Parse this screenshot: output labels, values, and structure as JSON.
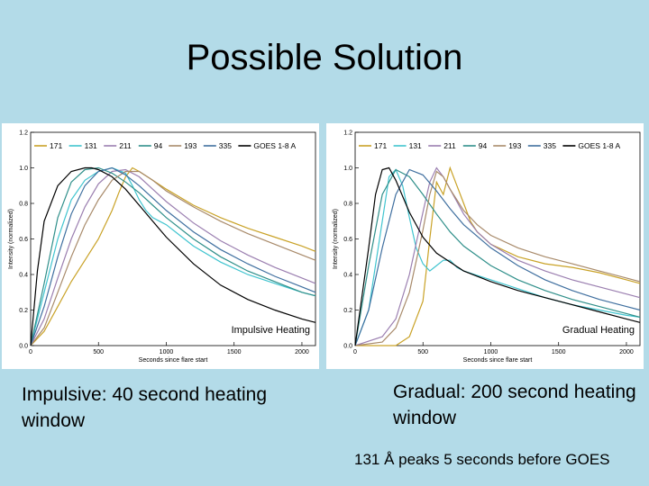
{
  "slide": {
    "title": "Possible Solution",
    "caption_left": "Impulsive: 40 second heating window",
    "caption_right": "Gradual: 200 second heating window",
    "note": "131 Å peaks 5 seconds before GOES"
  },
  "colors": {
    "background": "#b3dbe8",
    "171": "#c9a227",
    "131": "#40c4cf",
    "211": "#9b7fb0",
    "94": "#2f8f8a",
    "193": "#a88a6a",
    "335": "#3f6f9f",
    "GOES 1-8 A": "#000000"
  },
  "chart_data": [
    {
      "type": "line",
      "annotation": "Impulsive Heating",
      "xlabel": "Seconds since flare start",
      "ylabel": "Intensity (normalized)",
      "xlim": [
        0,
        2100
      ],
      "ylim": [
        0,
        1.2
      ],
      "x_ticks": [
        0,
        500,
        1000,
        1500,
        2000
      ],
      "y_ticks": [
        0.0,
        0.2,
        0.4,
        0.6,
        0.8,
        1.0,
        1.2
      ],
      "series": [
        {
          "name": "171",
          "x": [
            0,
            100,
            200,
            300,
            400,
            500,
            600,
            650,
            700,
            750,
            800,
            900,
            1000,
            1200,
            1400,
            1600,
            1800,
            2000,
            2100
          ],
          "y": [
            0,
            0.08,
            0.22,
            0.36,
            0.48,
            0.6,
            0.76,
            0.86,
            0.95,
            1.0,
            0.98,
            0.93,
            0.88,
            0.79,
            0.72,
            0.66,
            0.61,
            0.56,
            0.53
          ]
        },
        {
          "name": "131",
          "x": [
            0,
            100,
            200,
            300,
            400,
            500,
            600,
            700,
            750,
            800,
            850,
            900,
            950,
            1000,
            1100,
            1200,
            1400,
            1600,
            1800,
            2000,
            2100
          ],
          "y": [
            0,
            0.3,
            0.6,
            0.82,
            0.93,
            0.98,
            1.0,
            0.97,
            0.9,
            0.82,
            0.76,
            0.72,
            0.7,
            0.68,
            0.62,
            0.56,
            0.47,
            0.4,
            0.35,
            0.3,
            0.28
          ]
        },
        {
          "name": "211",
          "x": [
            0,
            100,
            200,
            300,
            400,
            500,
            600,
            700,
            800,
            900,
            1000,
            1200,
            1400,
            1600,
            1800,
            2000,
            2100
          ],
          "y": [
            0,
            0.15,
            0.38,
            0.6,
            0.78,
            0.91,
            0.98,
            0.99,
            0.95,
            0.88,
            0.81,
            0.69,
            0.59,
            0.51,
            0.44,
            0.38,
            0.35
          ]
        },
        {
          "name": "94",
          "x": [
            0,
            100,
            200,
            300,
            400,
            500,
            600,
            700,
            800,
            900,
            1000,
            1200,
            1400,
            1600,
            1800,
            2000,
            2100
          ],
          "y": [
            0,
            0.35,
            0.72,
            0.92,
            0.99,
            1.0,
            0.97,
            0.92,
            0.86,
            0.79,
            0.72,
            0.6,
            0.5,
            0.42,
            0.36,
            0.3,
            0.28
          ]
        },
        {
          "name": "193",
          "x": [
            0,
            100,
            200,
            300,
            400,
            500,
            600,
            700,
            800,
            900,
            1000,
            1200,
            1400,
            1600,
            1800,
            2000,
            2100
          ],
          "y": [
            0,
            0.1,
            0.3,
            0.5,
            0.68,
            0.82,
            0.93,
            0.98,
            0.98,
            0.93,
            0.87,
            0.78,
            0.7,
            0.63,
            0.57,
            0.51,
            0.48
          ]
        },
        {
          "name": "335",
          "x": [
            0,
            100,
            200,
            300,
            400,
            500,
            600,
            700,
            800,
            900,
            1000,
            1200,
            1400,
            1600,
            1800,
            2000,
            2100
          ],
          "y": [
            0,
            0.22,
            0.5,
            0.74,
            0.9,
            0.98,
            1.0,
            0.96,
            0.9,
            0.83,
            0.76,
            0.64,
            0.54,
            0.46,
            0.39,
            0.33,
            0.3
          ]
        },
        {
          "name": "GOES 1-8 A",
          "x": [
            0,
            50,
            100,
            200,
            300,
            400,
            450,
            500,
            600,
            700,
            800,
            900,
            1000,
            1200,
            1400,
            1600,
            1800,
            2000,
            2100
          ],
          "y": [
            0,
            0.42,
            0.7,
            0.9,
            0.98,
            1.0,
            1.0,
            0.99,
            0.95,
            0.88,
            0.79,
            0.7,
            0.61,
            0.46,
            0.34,
            0.26,
            0.2,
            0.15,
            0.13
          ]
        }
      ]
    },
    {
      "type": "line",
      "annotation": "Gradual Heating",
      "xlabel": "Seconds since flare start",
      "ylabel": "Intensity (normalized)",
      "xlim": [
        0,
        2100
      ],
      "ylim": [
        0,
        1.2
      ],
      "x_ticks": [
        0,
        500,
        1000,
        1500,
        2000
      ],
      "y_ticks": [
        0.0,
        0.2,
        0.4,
        0.6,
        0.8,
        1.0,
        1.2
      ],
      "series": [
        {
          "name": "171",
          "x": [
            0,
            300,
            400,
            500,
            550,
            600,
            650,
            700,
            750,
            800,
            850,
            900,
            1000,
            1200,
            1400,
            1600,
            1800,
            2000,
            2100
          ],
          "y": [
            0,
            0.0,
            0.05,
            0.25,
            0.6,
            0.92,
            0.85,
            1.0,
            0.9,
            0.8,
            0.7,
            0.64,
            0.57,
            0.5,
            0.46,
            0.44,
            0.41,
            0.37,
            0.35
          ]
        },
        {
          "name": "131",
          "x": [
            0,
            100,
            200,
            250,
            300,
            350,
            400,
            450,
            500,
            550,
            600,
            650,
            700,
            750,
            800,
            1000,
            1200,
            1400,
            1600,
            1800,
            2000,
            2100
          ],
          "y": [
            0,
            0.2,
            0.7,
            0.95,
            0.99,
            0.9,
            0.72,
            0.55,
            0.46,
            0.42,
            0.45,
            0.48,
            0.48,
            0.44,
            0.42,
            0.37,
            0.32,
            0.27,
            0.23,
            0.2,
            0.17,
            0.16
          ]
        },
        {
          "name": "211",
          "x": [
            0,
            200,
            300,
            400,
            500,
            550,
            600,
            650,
            700,
            800,
            900,
            1000,
            1200,
            1400,
            1600,
            1800,
            2000,
            2100
          ],
          "y": [
            0,
            0.05,
            0.15,
            0.4,
            0.75,
            0.92,
            1.0,
            0.95,
            0.88,
            0.74,
            0.64,
            0.57,
            0.48,
            0.42,
            0.37,
            0.33,
            0.29,
            0.27
          ]
        },
        {
          "name": "94",
          "x": [
            0,
            100,
            200,
            300,
            400,
            500,
            600,
            700,
            800,
            1000,
            1200,
            1400,
            1600,
            1800,
            2000,
            2100
          ],
          "y": [
            0,
            0.45,
            0.85,
            0.99,
            0.95,
            0.85,
            0.74,
            0.64,
            0.56,
            0.45,
            0.37,
            0.31,
            0.26,
            0.22,
            0.18,
            0.16
          ]
        },
        {
          "name": "193",
          "x": [
            0,
            200,
            300,
            400,
            500,
            550,
            600,
            650,
            700,
            800,
            900,
            1000,
            1200,
            1400,
            1600,
            1800,
            2000,
            2100
          ],
          "y": [
            0,
            0.02,
            0.1,
            0.3,
            0.65,
            0.85,
            0.98,
            0.95,
            0.88,
            0.76,
            0.68,
            0.62,
            0.55,
            0.5,
            0.46,
            0.42,
            0.38,
            0.36
          ]
        },
        {
          "name": "335",
          "x": [
            0,
            100,
            200,
            300,
            400,
            500,
            600,
            700,
            800,
            1000,
            1200,
            1400,
            1600,
            1800,
            2000,
            2100
          ],
          "y": [
            0,
            0.2,
            0.55,
            0.85,
            0.99,
            0.96,
            0.87,
            0.77,
            0.68,
            0.55,
            0.45,
            0.37,
            0.31,
            0.26,
            0.22,
            0.2
          ]
        },
        {
          "name": "GOES 1-8 A",
          "x": [
            0,
            100,
            150,
            200,
            250,
            300,
            400,
            500,
            600,
            800,
            1000,
            1200,
            1400,
            1600,
            1800,
            2000,
            2100
          ],
          "y": [
            0,
            0.55,
            0.85,
            0.99,
            1.0,
            0.93,
            0.75,
            0.61,
            0.52,
            0.42,
            0.36,
            0.31,
            0.27,
            0.23,
            0.19,
            0.15,
            0.13
          ]
        }
      ]
    }
  ]
}
